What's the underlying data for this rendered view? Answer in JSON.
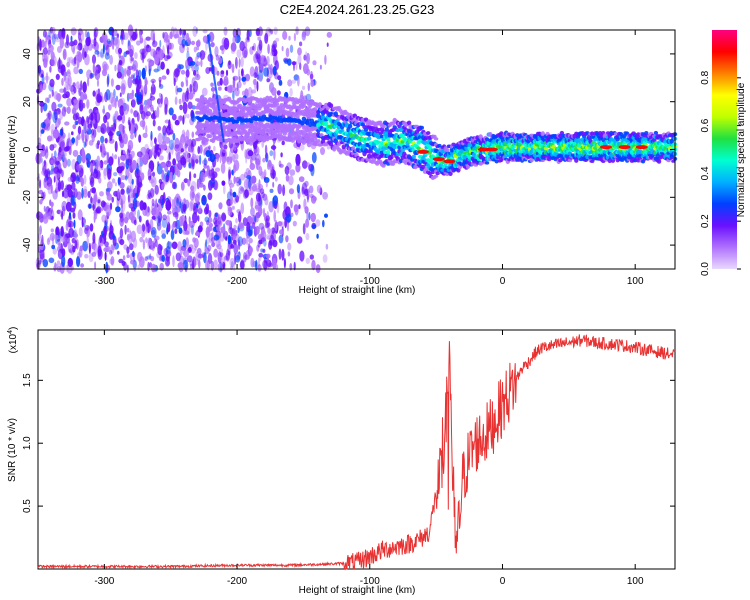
{
  "title": "C2E4.2024.261.23.25.G23",
  "colors": {
    "snr_line": "#e83232",
    "frame": "#000000",
    "scatter": "#7a3cff",
    "colormap": [
      "#e8d8ff",
      "#b070ff",
      "#6a10ff",
      "#0040ff",
      "#00b0ff",
      "#00ffd0",
      "#20e040",
      "#c0ff00",
      "#ffff00",
      "#ff8000",
      "#ff0000",
      "#ff0080"
    ]
  },
  "chart_data": [
    {
      "type": "heatmap",
      "xlabel": "Height of straight line (km)",
      "ylabel": "Frequency (Hz)",
      "xlim": [
        -350,
        130
      ],
      "ylim": [
        -50,
        50
      ],
      "xticks": [
        -300,
        -200,
        -100,
        0,
        100
      ],
      "yticks": [
        -40,
        -20,
        0,
        20,
        40
      ],
      "ridge": [
        {
          "x": -225,
          "y": 13
        },
        {
          "x": -200,
          "y": 12
        },
        {
          "x": -175,
          "y": 13
        },
        {
          "x": -150,
          "y": 12
        },
        {
          "x": -130,
          "y": 10
        },
        {
          "x": -110,
          "y": 5
        },
        {
          "x": -90,
          "y": 2
        },
        {
          "x": -75,
          "y": 4
        },
        {
          "x": -60,
          "y": 0
        },
        {
          "x": -50,
          "y": -4
        },
        {
          "x": -42,
          "y": -5
        },
        {
          "x": -30,
          "y": -2
        },
        {
          "x": -15,
          "y": 0
        },
        {
          "x": 0,
          "y": 1
        },
        {
          "x": 20,
          "y": 1
        },
        {
          "x": 60,
          "y": 1
        },
        {
          "x": 100,
          "y": 1
        },
        {
          "x": 130,
          "y": 1
        }
      ],
      "colorbar": {
        "label": "Normalized spectral amplitude",
        "ticks": [
          "0.0",
          "0.2",
          "0.4",
          "0.6",
          "0.8"
        ]
      }
    },
    {
      "type": "line",
      "xlabel": "Height of straight line (km)",
      "ylabel": "SNR (10 * v/v)",
      "y_multiplier": "(x10",
      "y_multiplier_exp": "4",
      "y_multiplier_close": ")",
      "xlim": [
        -350,
        130
      ],
      "ylim": [
        0,
        1.9
      ],
      "xticks": [
        -300,
        -200,
        -100,
        0,
        100
      ],
      "yticks": [
        "0.5",
        "1.0",
        "1.5"
      ],
      "series": [
        {
          "x": [
            -350,
            -300,
            -250,
            -200,
            -160,
            -130,
            -110,
            -100,
            -90,
            -80,
            -70,
            -60,
            -55,
            -50,
            -45,
            -42,
            -40,
            -38,
            -35,
            -30,
            -25,
            -20,
            -15,
            -10,
            -5,
            0,
            5,
            10,
            15,
            20,
            25,
            30,
            40,
            50,
            60,
            70,
            80,
            90,
            100,
            110,
            120,
            130
          ],
          "y": [
            0.02,
            0.02,
            0.02,
            0.03,
            0.03,
            0.04,
            0.05,
            0.1,
            0.15,
            0.18,
            0.2,
            0.25,
            0.3,
            0.6,
            0.8,
            1.3,
            1.9,
            0.9,
            0.1,
            0.7,
            0.9,
            1.0,
            1.05,
            1.1,
            1.2,
            1.3,
            1.4,
            1.5,
            1.6,
            1.65,
            1.72,
            1.76,
            1.78,
            1.8,
            1.82,
            1.8,
            1.79,
            1.78,
            1.76,
            1.74,
            1.72,
            1.7
          ]
        }
      ]
    }
  ]
}
